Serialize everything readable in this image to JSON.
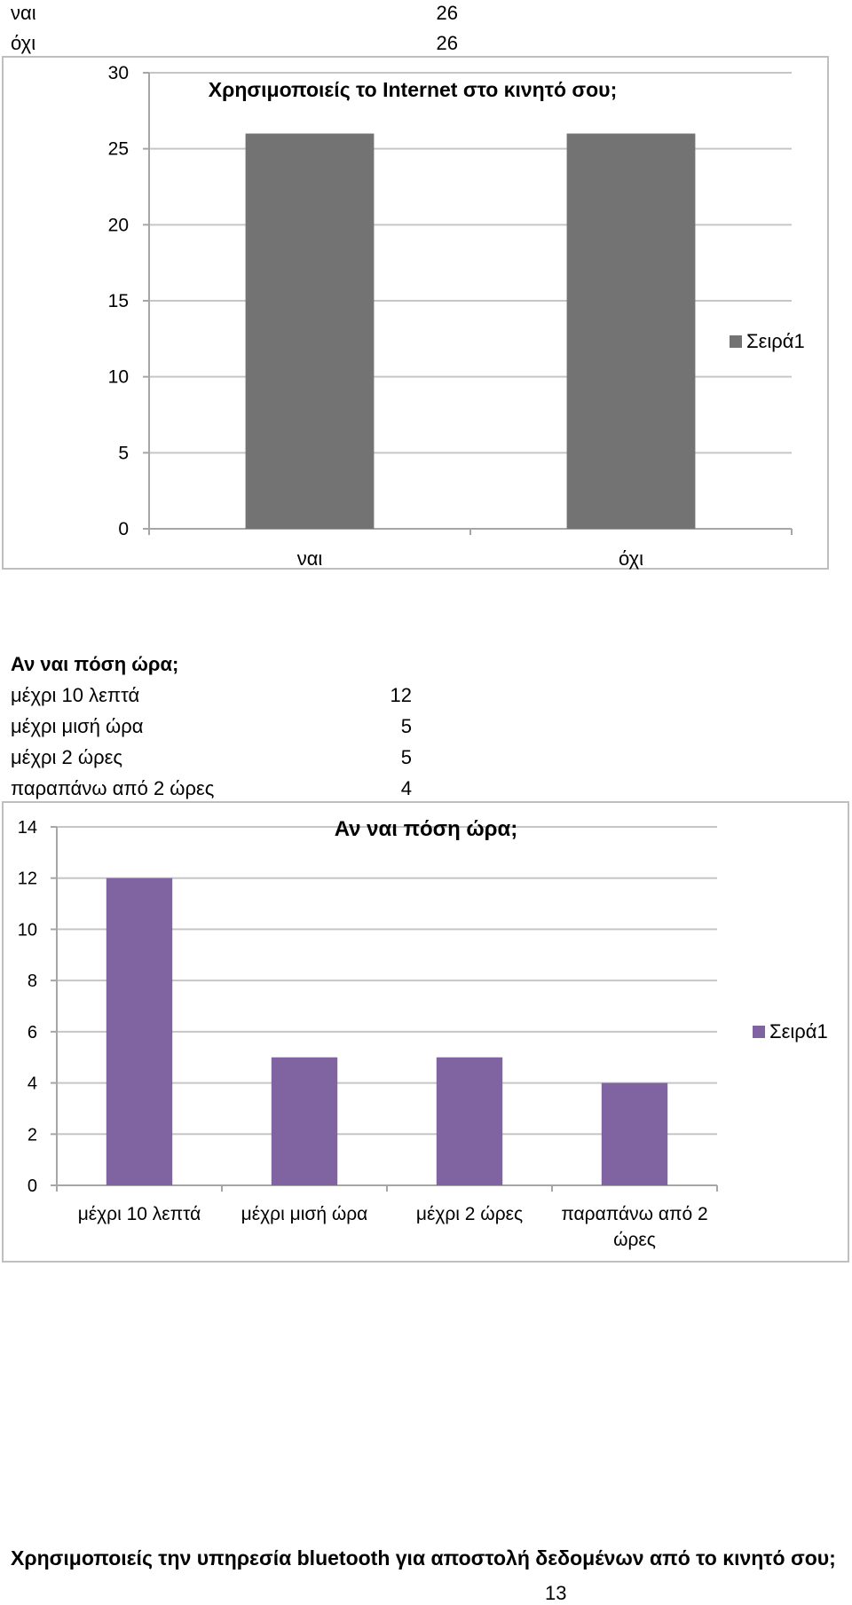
{
  "table1": {
    "rows": [
      {
        "label": "ναι",
        "value": "26"
      },
      {
        "label": "όχι",
        "value": "26"
      }
    ]
  },
  "table2": {
    "heading": "Αν ναι πόση ώρα;",
    "rows": [
      {
        "label": "μέχρι 10 λεπτά",
        "value": "12"
      },
      {
        "label": "μέχρι μισή ώρα",
        "value": "5"
      },
      {
        "label": "μέχρι 2 ώρες",
        "value": "5"
      },
      {
        "label": "παραπάνω από 2 ώρες",
        "value": "4"
      }
    ]
  },
  "next_question": "Χρησιμοποιείς την υπηρεσία bluetooth για αποστολή δεδομένων από το κινητό σου;",
  "page_number": "13",
  "chart_data": [
    {
      "type": "bar",
      "title": "Χρησιμοποιείς το Internet στο κινητό σου;",
      "categories": [
        "ναι",
        "όχι"
      ],
      "series": [
        {
          "name": "Σειρά1",
          "values": [
            26,
            26
          ]
        }
      ],
      "ylim": [
        0,
        30
      ],
      "yticks": [
        0,
        5,
        10,
        15,
        20,
        25,
        30
      ],
      "color": "#737373",
      "grid": true,
      "legend": "right"
    },
    {
      "type": "bar",
      "title": "Αν ναι πόση ώρα;",
      "categories": [
        "μέχρι 10 λεπτά",
        "μέχρι μισή ώρα",
        "μέχρι 2 ώρες",
        "παραπάνω από 2 ώρες"
      ],
      "category_lines": [
        [
          "μέχρι 10 λεπτά"
        ],
        [
          "μέχρι μισή ώρα"
        ],
        [
          "μέχρι 2 ώρες"
        ],
        [
          "παραπάνω από 2",
          "ώρες"
        ]
      ],
      "series": [
        {
          "name": "Σειρά1",
          "values": [
            12,
            5,
            5,
            4
          ]
        }
      ],
      "ylim": [
        0,
        14
      ],
      "yticks": [
        0,
        2,
        4,
        6,
        8,
        10,
        12,
        14
      ],
      "color": "#8064a2",
      "grid": true,
      "legend": "right"
    }
  ]
}
